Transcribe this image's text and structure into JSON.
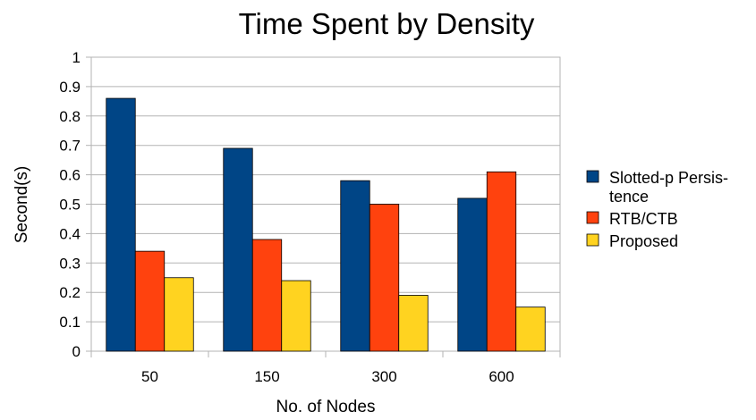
{
  "chart_data": {
    "type": "bar",
    "title": "Time Spent by Density",
    "xlabel": "No. of Nodes",
    "ylabel": "Second(s)",
    "categories": [
      "50",
      "150",
      "300",
      "600"
    ],
    "ylim": [
      0,
      1
    ],
    "yticks": [
      "0",
      "0.1",
      "0.2",
      "0.3",
      "0.4",
      "0.5",
      "0.6",
      "0.7",
      "0.8",
      "0.9",
      "1"
    ],
    "grid": true,
    "legend_position": "right",
    "series": [
      {
        "name": "Slotted-p Persistence",
        "legend_lines": [
          "Slotted-p Persis-",
          "tence"
        ],
        "color": "#004586",
        "values": [
          0.86,
          0.69,
          0.58,
          0.52
        ]
      },
      {
        "name": "RTB/CTB",
        "legend_lines": [
          "RTB/CTB"
        ],
        "color": "#ff420e",
        "values": [
          0.34,
          0.38,
          0.5,
          0.61
        ]
      },
      {
        "name": "Proposed",
        "legend_lines": [
          "Proposed"
        ],
        "color": "#ffd320",
        "values": [
          0.25,
          0.24,
          0.19,
          0.15
        ]
      }
    ]
  }
}
